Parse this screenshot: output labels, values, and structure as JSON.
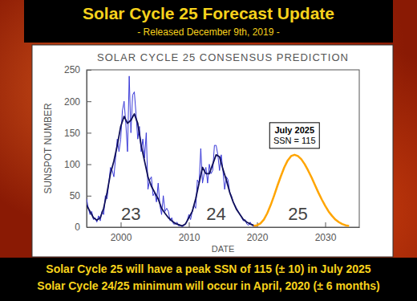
{
  "header": {
    "title": "Solar Cycle 25 Forecast Update",
    "subtitle": "- Released December 9th, 2019 -"
  },
  "footer": [
    "Solar Cycle 25 will have a peak SSN of 115 (± 10) in July 2025",
    "Solar Cycle 24/25 minimum will occur in April, 2020 (± 6 months)"
  ],
  "chart_data": {
    "type": "line",
    "title": "SOLAR CYCLE 25 CONSENSUS PREDICTION",
    "x_label": "DATE",
    "y_label": "SUNSPOT NUMBER",
    "xlim": [
      1995,
      2035
    ],
    "xticks": [
      2000,
      2010,
      2020,
      2030
    ],
    "ylim": [
      0,
      250
    ],
    "yticks": [
      0,
      50,
      100,
      150,
      200,
      250
    ],
    "grid": false,
    "series": [
      {
        "color": "#3a3ad8",
        "line_style": "solid",
        "x": [
          1995,
          1995.25,
          1995.5,
          1995.75,
          1996,
          1996.25,
          1996.5,
          1996.75,
          1997,
          1997.25,
          1997.5,
          1997.75,
          1998,
          1998.25,
          1998.5,
          1998.75,
          1999,
          1999.25,
          1999.5,
          1999.75,
          2000,
          2000.25,
          2000.5,
          2000.75,
          2001,
          2001.25,
          2001.5,
          2001.75,
          2002,
          2002.25,
          2002.5,
          2002.75,
          2003,
          2003.25,
          2003.5,
          2003.75,
          2004,
          2004.25,
          2004.5,
          2004.75,
          2005,
          2005.25,
          2005.5,
          2005.75,
          2006,
          2006.25,
          2006.5,
          2006.75,
          2007,
          2007.25,
          2007.5,
          2007.75,
          2008,
          2008.25,
          2008.5,
          2008.75,
          2009,
          2009.25,
          2009.5,
          2009.75,
          2010,
          2010.25,
          2010.5,
          2010.75,
          2011,
          2011.25,
          2011.5,
          2011.75,
          2012,
          2012.25,
          2012.5,
          2012.75,
          2013,
          2013.25,
          2013.5,
          2013.75,
          2014,
          2014.25,
          2014.5,
          2014.75,
          2015,
          2015.25,
          2015.5,
          2015.75,
          2016,
          2016.25,
          2016.5,
          2016.75,
          2017,
          2017.25,
          2017.5,
          2017.75,
          2018,
          2018.25,
          2018.5,
          2018.75,
          2019,
          2019.25,
          2019.5,
          2019.75,
          2020
        ],
        "values": [
          45,
          30,
          20,
          25,
          12,
          15,
          8,
          18,
          10,
          25,
          20,
          50,
          45,
          70,
          95,
          90,
          80,
          110,
          140,
          120,
          140,
          185,
          200,
          165,
          120,
          240,
          150,
          210,
          215,
          180,
          140,
          160,
          120,
          140,
          110,
          150,
          60,
          75,
          80,
          50,
          55,
          40,
          70,
          35,
          20,
          50,
          25,
          30,
          25,
          10,
          15,
          5,
          5,
          8,
          2,
          3,
          1,
          2,
          5,
          10,
          20,
          12,
          25,
          35,
          30,
          75,
          70,
          125,
          70,
          85,
          95,
          70,
          100,
          85,
          90,
          130,
          130,
          115,
          90,
          115,
          90,
          60,
          80,
          75,
          55,
          50,
          40,
          35,
          30,
          25,
          20,
          15,
          10,
          12,
          5,
          3,
          8,
          3,
          1,
          1,
          2
        ]
      },
      {
        "color": "#10105a",
        "line_style": "solid",
        "x": [
          1995,
          1995.5,
          1996,
          1996.5,
          1997,
          1997.5,
          1998,
          1998.5,
          1999,
          1999.5,
          2000,
          2000.5,
          2001,
          2001.5,
          2002,
          2002.5,
          2003,
          2003.5,
          2004,
          2004.5,
          2005,
          2005.5,
          2006,
          2006.5,
          2007,
          2007.5,
          2008,
          2008.5,
          2009,
          2009.5,
          2010,
          2010.5,
          2011,
          2011.5,
          2012,
          2012.5,
          2013,
          2013.5,
          2014,
          2014.5,
          2015,
          2015.5,
          2016,
          2016.5,
          2017,
          2017.5,
          2018,
          2018.5,
          2019,
          2019.5,
          2019.9
        ],
        "values": [
          35,
          25,
          15,
          11,
          15,
          30,
          55,
          85,
          105,
          130,
          160,
          176,
          165,
          170,
          180,
          165,
          130,
          105,
          80,
          65,
          55,
          45,
          30,
          22,
          15,
          10,
          6,
          4,
          2,
          5,
          15,
          25,
          45,
          70,
          95,
          85,
          85,
          100,
          115,
          112,
          92,
          75,
          55,
          40,
          28,
          20,
          12,
          8,
          5,
          3,
          2
        ]
      },
      {
        "color": "#ffa500",
        "line_style": "solid",
        "x": [
          2019.5,
          2020,
          2020.5,
          2021,
          2021.5,
          2022,
          2022.5,
          2023,
          2023.5,
          2024,
          2024.5,
          2025,
          2025.5,
          2026,
          2026.5,
          2027,
          2027.5,
          2028,
          2028.5,
          2029,
          2029.5,
          2030,
          2030.5,
          2031,
          2031.5,
          2032,
          2032.5,
          2033,
          2033.5
        ],
        "values": [
          2,
          3,
          6,
          12,
          22,
          35,
          50,
          66,
          81,
          95,
          106,
          113,
          115,
          113,
          108,
          100,
          90,
          79,
          67,
          55,
          44,
          34,
          25,
          18,
          12,
          8,
          5,
          3,
          2
        ]
      }
    ],
    "annotations": [
      {
        "text": "23",
        "x": 2001.5,
        "y": 12
      },
      {
        "text": "24",
        "x": 2014,
        "y": 12
      },
      {
        "text": "25",
        "x": 2026,
        "y": 12
      },
      {
        "lines": [
          "July 2025",
          "SSN = 115"
        ],
        "x": 2025.5,
        "y": 115
      }
    ]
  }
}
